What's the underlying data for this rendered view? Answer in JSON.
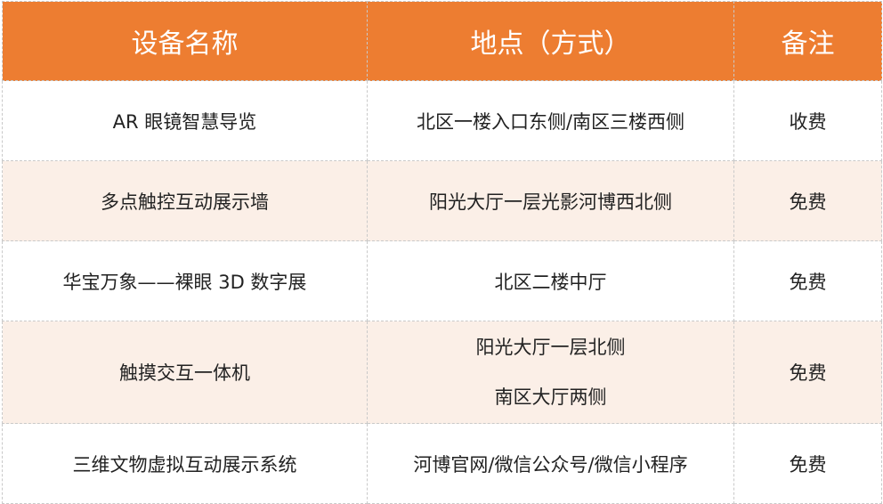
{
  "colors": {
    "header_bg": "#ED7D31",
    "alt_row_bg": "#FBEFE7"
  },
  "headers": [
    "设备名称",
    "地点（方式）",
    "备注"
  ],
  "rows": [
    {
      "name": "AR 眼镜智慧导览",
      "location": [
        "北区一楼入口东侧/南区三楼西侧"
      ],
      "note": "收费"
    },
    {
      "name": "多点触控互动展示墙",
      "location": [
        "阳光大厅一层光影河博西北侧"
      ],
      "note": "免费"
    },
    {
      "name": "华宝万象——裸眼 3D 数字展",
      "location": [
        "北区二楼中厅"
      ],
      "note": "免费"
    },
    {
      "name": "触摸交互一体机",
      "location": [
        "阳光大厅一层北侧",
        "南区大厅两侧"
      ],
      "note": "免费"
    },
    {
      "name": "三维文物虚拟互动展示系统",
      "location": [
        "河博官网/微信公众号/微信小程序"
      ],
      "note": "免费"
    }
  ]
}
